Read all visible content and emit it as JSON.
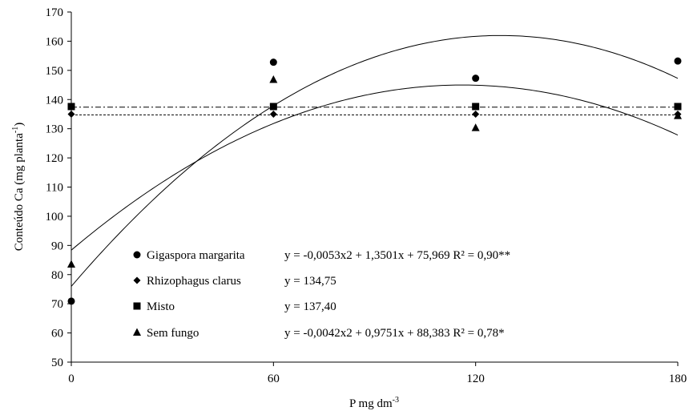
{
  "chart_data": {
    "type": "scatter",
    "xlabel": "P mg dm",
    "xlabel_sup": "-3",
    "ylabel": "Conteúdo Ca (mg planta",
    "ylabel_sup": "-1",
    "ylabel_close": ")",
    "xlim": [
      0,
      180
    ],
    "ylim": [
      50,
      170
    ],
    "xticks": [
      "0",
      "60",
      "120",
      "180"
    ],
    "yticks": [
      "50",
      "60",
      "70",
      "80",
      "90",
      "100",
      "110",
      "120",
      "130",
      "140",
      "150",
      "160",
      "170"
    ],
    "grid": false,
    "legend_position": "bottom-left (inside plot)",
    "series": [
      {
        "name": "Gigaspora margarita",
        "marker": "circle",
        "equation": "y = -0,0053x2 + 1,3501x + 75,969 R² = 0,90**",
        "fit": {
          "kind": "quadratic",
          "a": -0.0053,
          "b": 1.3501,
          "c": 75.969,
          "line": "solid"
        },
        "points": [
          [
            0,
            70.9
          ],
          [
            60,
            152.8
          ],
          [
            120,
            147.3
          ],
          [
            180,
            153.2
          ]
        ]
      },
      {
        "name": "Rhizophagus clarus",
        "marker": "diamond",
        "equation": "y = 134,75",
        "fit": {
          "kind": "constant",
          "value": 134.75,
          "line": "dashed"
        },
        "points": [
          [
            0,
            135.0
          ],
          [
            60,
            135.0
          ],
          [
            120,
            135.0
          ],
          [
            180,
            135.0
          ]
        ]
      },
      {
        "name": "Misto",
        "marker": "square",
        "equation": "y = 137,40",
        "fit": {
          "kind": "constant",
          "value": 137.4,
          "line": "dash-dot"
        },
        "points": [
          [
            0,
            137.6
          ],
          [
            60,
            137.6
          ],
          [
            120,
            137.6
          ],
          [
            180,
            137.6
          ]
        ]
      },
      {
        "name": "Sem fungo",
        "marker": "triangle",
        "equation": "y = -0,0042x2 + 0,9751x + 88,383 R² = 0,78*",
        "fit": {
          "kind": "quadratic",
          "a": -0.0042,
          "b": 0.9751,
          "c": 88.383,
          "line": "solid"
        },
        "points": [
          [
            0,
            83.5
          ],
          [
            60,
            146.8
          ],
          [
            120,
            130.3
          ],
          [
            180,
            134.4
          ]
        ]
      }
    ]
  }
}
